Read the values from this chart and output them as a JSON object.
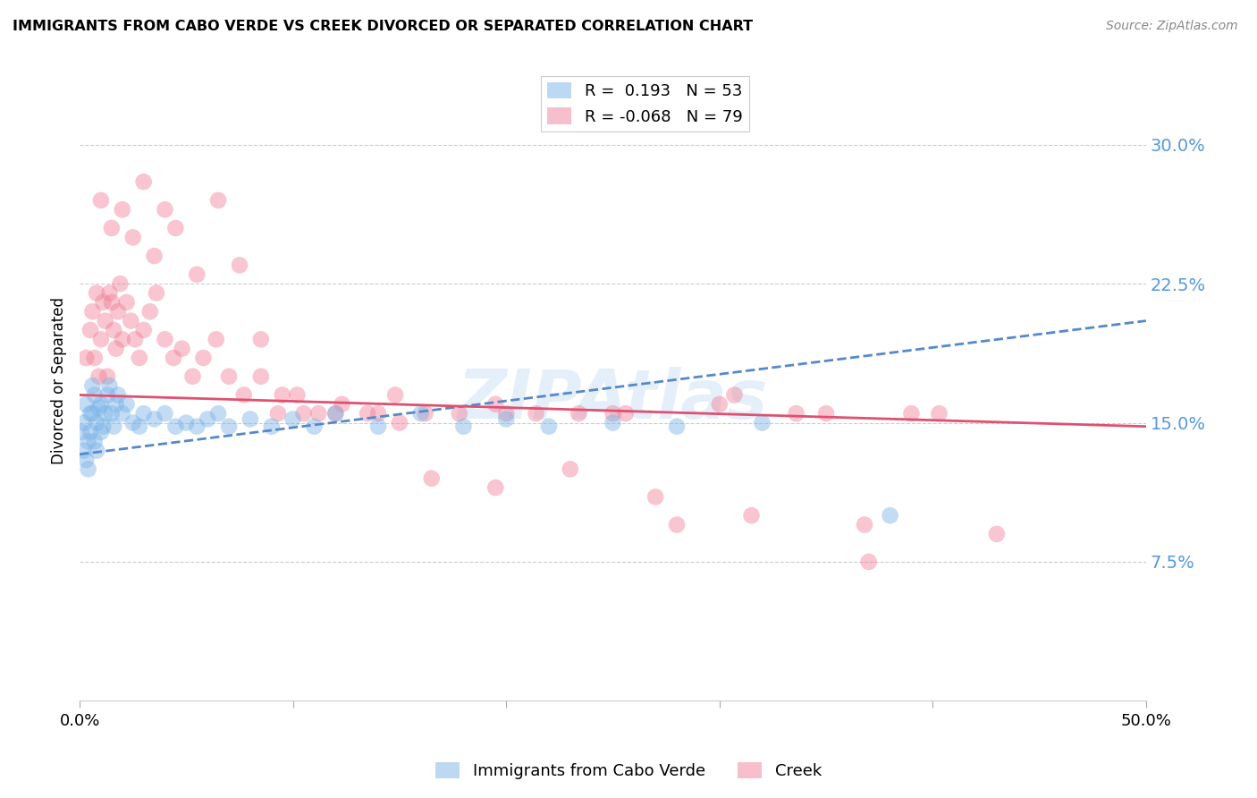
{
  "title": "IMMIGRANTS FROM CABO VERDE VS CREEK DIVORCED OR SEPARATED CORRELATION CHART",
  "source": "Source: ZipAtlas.com",
  "ylabel": "Divorced or Separated",
  "x_min": 0.0,
  "x_max": 0.5,
  "y_min": 0.0,
  "y_max": 0.345,
  "x_ticks": [
    0.0,
    0.1,
    0.2,
    0.3,
    0.4,
    0.5
  ],
  "x_tick_labels": [
    "0.0%",
    "",
    "",
    "",
    "",
    "50.0%"
  ],
  "y_ticks": [
    0.075,
    0.15,
    0.225,
    0.3
  ],
  "y_tick_labels": [
    "7.5%",
    "15.0%",
    "22.5%",
    "30.0%"
  ],
  "legend_label_cabo": "Immigrants from Cabo Verde",
  "legend_label_creek": "Creek",
  "cabo_color": "#7ab3e8",
  "creek_color": "#f08098",
  "watermark": "ZIPAtlas",
  "cabo_scatter_x": [
    0.001,
    0.002,
    0.002,
    0.003,
    0.003,
    0.004,
    0.004,
    0.005,
    0.005,
    0.006,
    0.006,
    0.007,
    0.007,
    0.008,
    0.008,
    0.009,
    0.01,
    0.01,
    0.011,
    0.012,
    0.013,
    0.014,
    0.015,
    0.016,
    0.017,
    0.018,
    0.02,
    0.022,
    0.025,
    0.028,
    0.03,
    0.035,
    0.04,
    0.045,
    0.05,
    0.055,
    0.06,
    0.065,
    0.07,
    0.08,
    0.09,
    0.1,
    0.11,
    0.12,
    0.14,
    0.16,
    0.18,
    0.2,
    0.22,
    0.25,
    0.28,
    0.32,
    0.38
  ],
  "cabo_scatter_y": [
    0.145,
    0.135,
    0.15,
    0.13,
    0.16,
    0.14,
    0.125,
    0.155,
    0.145,
    0.17,
    0.155,
    0.14,
    0.165,
    0.15,
    0.135,
    0.158,
    0.145,
    0.16,
    0.148,
    0.155,
    0.165,
    0.17,
    0.155,
    0.148,
    0.16,
    0.165,
    0.155,
    0.16,
    0.15,
    0.148,
    0.155,
    0.152,
    0.155,
    0.148,
    0.15,
    0.148,
    0.152,
    0.155,
    0.148,
    0.152,
    0.148,
    0.152,
    0.148,
    0.155,
    0.148,
    0.155,
    0.148,
    0.152,
    0.148,
    0.15,
    0.148,
    0.15,
    0.1
  ],
  "creek_scatter_x": [
    0.003,
    0.005,
    0.006,
    0.007,
    0.008,
    0.009,
    0.01,
    0.011,
    0.012,
    0.013,
    0.014,
    0.015,
    0.016,
    0.017,
    0.018,
    0.019,
    0.02,
    0.022,
    0.024,
    0.026,
    0.028,
    0.03,
    0.033,
    0.036,
    0.04,
    0.044,
    0.048,
    0.053,
    0.058,
    0.064,
    0.07,
    0.077,
    0.085,
    0.093,
    0.102,
    0.112,
    0.123,
    0.135,
    0.148,
    0.162,
    0.178,
    0.195,
    0.214,
    0.234,
    0.256,
    0.28,
    0.307,
    0.336,
    0.368,
    0.403,
    0.01,
    0.015,
    0.02,
    0.025,
    0.03,
    0.035,
    0.04,
    0.045,
    0.055,
    0.065,
    0.075,
    0.085,
    0.095,
    0.105,
    0.12,
    0.14,
    0.165,
    0.195,
    0.23,
    0.27,
    0.315,
    0.37,
    0.43,
    0.39,
    0.35,
    0.3,
    0.25,
    0.2,
    0.15
  ],
  "creek_scatter_y": [
    0.185,
    0.2,
    0.21,
    0.185,
    0.22,
    0.175,
    0.195,
    0.215,
    0.205,
    0.175,
    0.22,
    0.215,
    0.2,
    0.19,
    0.21,
    0.225,
    0.195,
    0.215,
    0.205,
    0.195,
    0.185,
    0.2,
    0.21,
    0.22,
    0.195,
    0.185,
    0.19,
    0.175,
    0.185,
    0.195,
    0.175,
    0.165,
    0.175,
    0.155,
    0.165,
    0.155,
    0.16,
    0.155,
    0.165,
    0.155,
    0.155,
    0.16,
    0.155,
    0.155,
    0.155,
    0.095,
    0.165,
    0.155,
    0.095,
    0.155,
    0.27,
    0.255,
    0.265,
    0.25,
    0.28,
    0.24,
    0.265,
    0.255,
    0.23,
    0.27,
    0.235,
    0.195,
    0.165,
    0.155,
    0.155,
    0.155,
    0.12,
    0.115,
    0.125,
    0.11,
    0.1,
    0.075,
    0.09,
    0.155,
    0.155,
    0.16,
    0.155,
    0.155,
    0.15
  ]
}
